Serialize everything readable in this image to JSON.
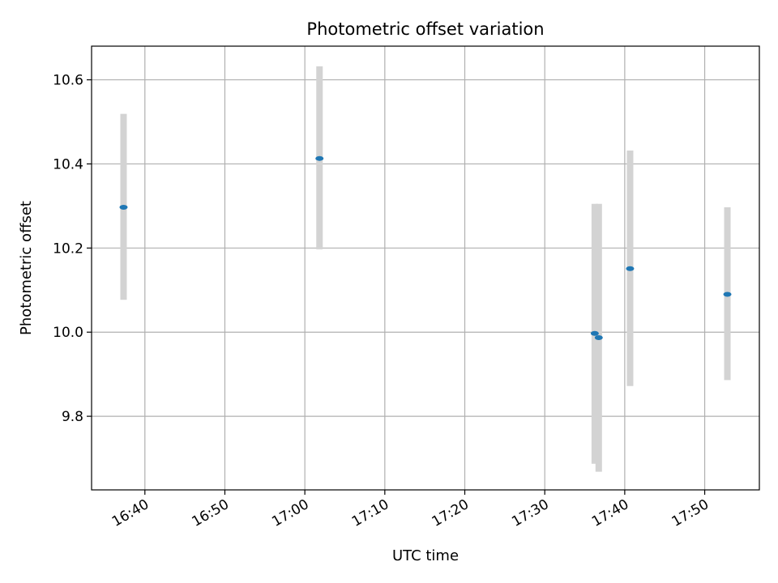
{
  "chart_data": {
    "type": "scatter",
    "title": "Photometric offset variation",
    "xlabel": "UTC time",
    "ylabel": "Photometric offset",
    "x_ticks": [
      "16:40",
      "16:50",
      "17:00",
      "17:10",
      "17:20",
      "17:30",
      "17:40",
      "17:50"
    ],
    "y_ticks": [
      "9.8",
      "10.0",
      "10.2",
      "10.4",
      "10.6"
    ],
    "xlim": [
      "16:33:20",
      "17:56:50"
    ],
    "ylim": [
      9.625,
      10.68
    ],
    "grid": true,
    "points": [
      {
        "x": "16:37:20",
        "y": 10.297,
        "err_low": 10.077,
        "err_high": 10.519
      },
      {
        "x": "17:01:50",
        "y": 10.413,
        "err_low": 10.197,
        "err_high": 10.632
      },
      {
        "x": "17:36:15",
        "y": 9.997,
        "err_low": 9.687,
        "err_high": 10.305
      },
      {
        "x": "17:36:45",
        "y": 9.987,
        "err_low": 9.668,
        "err_high": 10.305
      },
      {
        "x": "17:40:40",
        "y": 10.151,
        "err_low": 9.872,
        "err_high": 10.432
      },
      {
        "x": "17:52:50",
        "y": 10.09,
        "err_low": 9.886,
        "err_high": 10.297
      }
    ],
    "colors": {
      "marker": "#1f77b4",
      "errorbar": "#d3d3d3",
      "grid": "#b0b0b0"
    }
  }
}
